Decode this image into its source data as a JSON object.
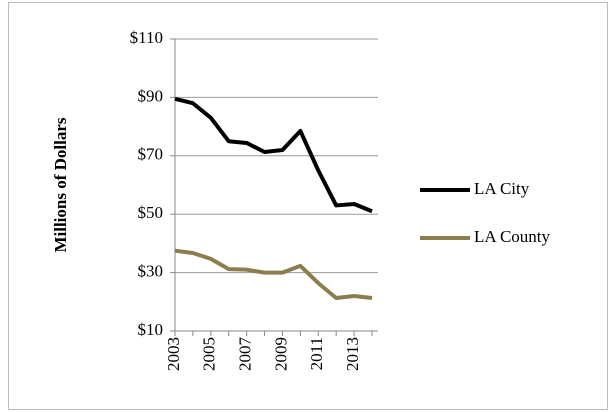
{
  "chart_data": {
    "type": "line",
    "ylabel": "Millions of Dollars",
    "x": [
      2003,
      2004,
      2005,
      2006,
      2007,
      2008,
      2009,
      2010,
      2011,
      2012,
      2013,
      2014
    ],
    "xlim": [
      2003,
      2014
    ],
    "xticks": [
      2003,
      2005,
      2007,
      2009,
      2011,
      2013
    ],
    "ylim": [
      10,
      110
    ],
    "yticks": [
      {
        "value": 10,
        "label": "$10"
      },
      {
        "value": 30,
        "label": "$30"
      },
      {
        "value": 50,
        "label": "$50"
      },
      {
        "value": 70,
        "label": "$70"
      },
      {
        "value": 90,
        "label": "$90"
      },
      {
        "value": 110,
        "label": "$110"
      }
    ],
    "grid": true,
    "legend": "right",
    "series": [
      {
        "name": "LA City",
        "color": "#000000",
        "values": [
          89.5,
          88,
          83,
          75,
          74.4,
          71.3,
          72,
          78.5,
          65,
          53,
          53.5,
          51
        ]
      },
      {
        "name": "LA County",
        "color": "#8b7d4e",
        "values": [
          37.5,
          36.7,
          34.7,
          31.2,
          31,
          30,
          30,
          32.3,
          26.4,
          21.3,
          22,
          21.3
        ]
      }
    ]
  }
}
